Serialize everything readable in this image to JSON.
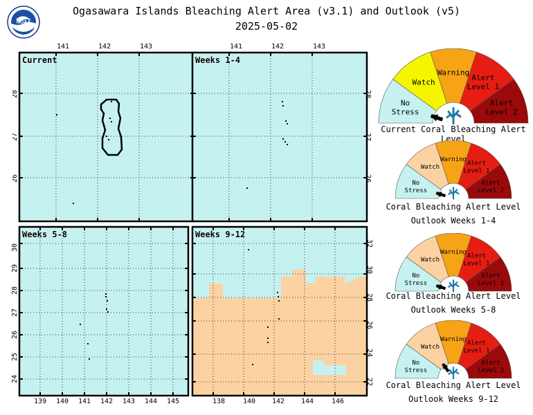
{
  "header": {
    "title": "Ogasawara Islands Bleaching Alert Area (v3.1) and Outlook (v5)",
    "date": "2025-05-02",
    "logo_text": "NOAA"
  },
  "colors": {
    "no_stress": "#c6f1f1",
    "watch_current": "#f5f500",
    "watch_outlook": "#fcd2a2",
    "warning": "#f6a416",
    "alert1": "#e61d13",
    "alert2": "#9a0a0a"
  },
  "maps": [
    {
      "label": "Current",
      "top_ticks": [
        "141",
        "142",
        "143"
      ],
      "right_ticks": [],
      "left_ticks": [
        "28",
        "27",
        "26"
      ],
      "bottom_ticks": []
    },
    {
      "label": "Weeks 1-4",
      "top_ticks": [
        "141",
        "142",
        "143"
      ],
      "right_ticks": [
        "28",
        "27",
        "26"
      ],
      "left_ticks": [],
      "bottom_ticks": []
    },
    {
      "label": "Weeks 5-8",
      "top_ticks": [],
      "right_ticks": [],
      "left_ticks": [
        "30",
        "29",
        "28",
        "27",
        "26",
        "25",
        "24"
      ],
      "bottom_ticks": [
        "139",
        "140",
        "141",
        "142",
        "143",
        "144",
        "145"
      ]
    },
    {
      "label": "Weeks 9-12",
      "top_ticks": [],
      "right_ticks": [
        "32",
        "30",
        "28",
        "26",
        "24",
        "22"
      ],
      "left_ticks": [],
      "bottom_ticks": [
        "138",
        "140",
        "142",
        "144",
        "146"
      ]
    }
  ],
  "gauge_labels": {
    "no_stress": [
      "No",
      "Stress"
    ],
    "watch": "Watch",
    "warning": "Warning",
    "alert1": [
      "Alert",
      "Level 1"
    ],
    "alert2": [
      "Alert",
      "Level 2"
    ]
  },
  "gauges": [
    {
      "caption_lines": [
        "Current Coral Bleaching Alert Level"
      ],
      "level": "No Stress",
      "watch_color": "#f5f500"
    },
    {
      "caption_lines": [
        "Coral Bleaching Alert Level",
        "Outlook Weeks 1-4"
      ],
      "level": "No Stress",
      "watch_color": "#fcd2a2"
    },
    {
      "caption_lines": [
        "Coral Bleaching Alert Level",
        "Outlook Weeks 5-8"
      ],
      "level": "No Stress",
      "watch_color": "#fcd2a2"
    },
    {
      "caption_lines": [
        "Coral Bleaching Alert Level",
        "Outlook Weeks 9-12"
      ],
      "level": "Watch",
      "watch_color": "#fcd2a2"
    }
  ]
}
